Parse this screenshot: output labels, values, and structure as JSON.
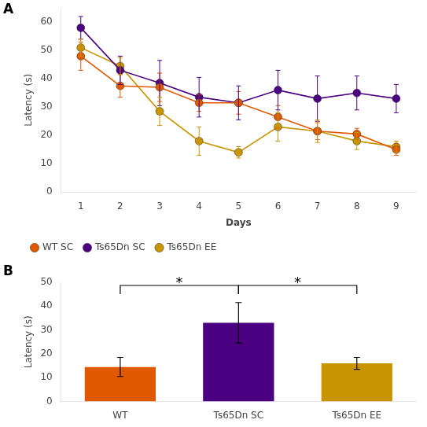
{
  "chart_data": [
    {
      "type": "line",
      "xlabel": "Days",
      "ylabel": "Latency (s)",
      "x": [
        1,
        2,
        3,
        4,
        5,
        6,
        7,
        8,
        9
      ],
      "xlim": [
        0.5,
        9.5
      ],
      "xticks": [
        1,
        2,
        3,
        4,
        5,
        6,
        7,
        8,
        9
      ],
      "ylim": [
        0,
        65
      ],
      "yticks": [
        0,
        10,
        20,
        30,
        40,
        50,
        60
      ],
      "grid": false,
      "legend": "lower left",
      "marker": "o",
      "annotations": [
        {
          "text": "A"
        }
      ],
      "series": [
        {
          "name": "WT SC",
          "color": "#E05800",
          "values": [
            48,
            37.5,
            37,
            31.5,
            31.5,
            26.5,
            21.5,
            20.5,
            15
          ],
          "errors": [
            5,
            4,
            5,
            3,
            4,
            4,
            3,
            2,
            2
          ]
        },
        {
          "name": "Ts65Dn SC",
          "color": "#4B0082",
          "values": [
            58,
            43,
            38.5,
            33.5,
            31.5,
            36,
            33,
            35,
            33
          ],
          "errors": [
            4,
            5,
            8,
            7,
            6,
            7,
            8,
            6,
            5
          ]
        },
        {
          "name": "Ts65Dn EE",
          "color": "#C89500",
          "values": [
            51,
            44.5,
            28.5,
            18,
            14,
            23,
            21.5,
            18,
            16
          ],
          "errors": [
            3,
            3,
            5,
            5,
            2,
            5,
            4,
            3,
            2
          ]
        }
      ]
    },
    {
      "type": "bar",
      "ylabel": "Latency (s)",
      "categories": [
        "WT",
        "Ts65Dn SC",
        "Ts65Dn EE"
      ],
      "values": [
        14.5,
        33,
        16
      ],
      "errors": [
        4,
        8.5,
        2.5
      ],
      "colors": [
        "#E05800",
        "#4B0082",
        "#C89500"
      ],
      "ylim": [
        0,
        50
      ],
      "yticks": [
        0,
        10,
        20,
        30,
        40,
        50
      ],
      "grid": false,
      "annotations": [
        {
          "text": "B"
        },
        {
          "text": "*",
          "between": [
            "WT",
            "Ts65Dn SC"
          ]
        },
        {
          "text": "*",
          "between": [
            "Ts65Dn SC",
            "Ts65Dn EE"
          ]
        }
      ]
    }
  ]
}
